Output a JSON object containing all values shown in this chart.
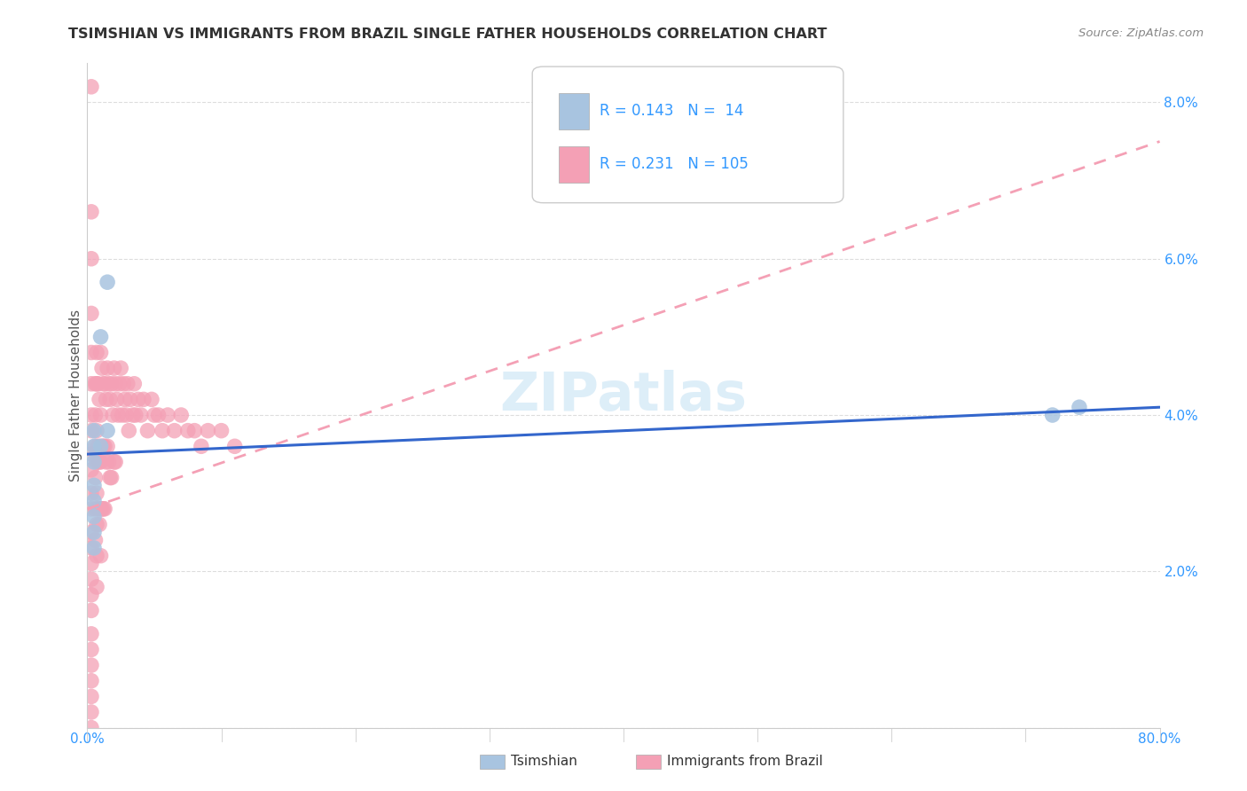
{
  "title": "TSIMSHIAN VS IMMIGRANTS FROM BRAZIL SINGLE FATHER HOUSEHOLDS CORRELATION CHART",
  "source": "Source: ZipAtlas.com",
  "ylabel": "Single Father Households",
  "x_min": 0.0,
  "x_max": 0.8,
  "y_min": 0.0,
  "y_max": 0.085,
  "x_ticks": [
    0.0,
    0.1,
    0.2,
    0.3,
    0.4,
    0.5,
    0.6,
    0.7,
    0.8
  ],
  "x_tick_labels": [
    "0.0%",
    "",
    "",
    "",
    "",
    "",
    "",
    "",
    "80.0%"
  ],
  "y_ticks": [
    0.0,
    0.02,
    0.04,
    0.06,
    0.08
  ],
  "y_tick_labels_right": [
    "",
    "2.0%",
    "4.0%",
    "6.0%",
    "8.0%"
  ],
  "tsimshian_color": "#a8c4e0",
  "brazil_color": "#f4a0b5",
  "tsimshian_line_color": "#3366cc",
  "brazil_line_color": "#f4a0b5",
  "tsimshian_R": 0.143,
  "tsimshian_N": 14,
  "brazil_R": 0.231,
  "brazil_N": 105,
  "legend_color": "#3399ff",
  "watermark": "ZIPatlas",
  "background_color": "#ffffff",
  "grid_color": "#dddddd",
  "tsimshian_line_start_y": 0.035,
  "tsimshian_line_end_y": 0.041,
  "brazil_line_start_y": 0.028,
  "brazil_line_end_y": 0.075,
  "tsimshian_points_x": [
    0.005,
    0.005,
    0.005,
    0.005,
    0.005,
    0.005,
    0.005,
    0.005,
    0.01,
    0.01,
    0.015,
    0.015,
    0.72,
    0.74
  ],
  "tsimshian_points_y": [
    0.038,
    0.036,
    0.034,
    0.031,
    0.029,
    0.027,
    0.025,
    0.023,
    0.05,
    0.036,
    0.038,
    0.057,
    0.04,
    0.041
  ],
  "brazil_points_x": [
    0.003,
    0.003,
    0.003,
    0.003,
    0.003,
    0.003,
    0.003,
    0.003,
    0.003,
    0.003,
    0.003,
    0.003,
    0.003,
    0.003,
    0.003,
    0.003,
    0.003,
    0.003,
    0.003,
    0.003,
    0.003,
    0.003,
    0.003,
    0.003,
    0.003,
    0.006,
    0.006,
    0.006,
    0.006,
    0.006,
    0.006,
    0.007,
    0.007,
    0.007,
    0.007,
    0.007,
    0.007,
    0.007,
    0.007,
    0.008,
    0.008,
    0.008,
    0.009,
    0.009,
    0.009,
    0.01,
    0.01,
    0.01,
    0.01,
    0.01,
    0.011,
    0.011,
    0.011,
    0.012,
    0.012,
    0.012,
    0.013,
    0.013,
    0.013,
    0.014,
    0.014,
    0.015,
    0.015,
    0.016,
    0.016,
    0.017,
    0.017,
    0.018,
    0.018,
    0.019,
    0.02,
    0.02,
    0.021,
    0.021,
    0.022,
    0.023,
    0.024,
    0.025,
    0.026,
    0.027,
    0.028,
    0.029,
    0.03,
    0.031,
    0.032,
    0.034,
    0.035,
    0.036,
    0.038,
    0.04,
    0.042,
    0.045,
    0.048,
    0.05,
    0.053,
    0.056,
    0.06,
    0.065,
    0.07,
    0.075,
    0.08,
    0.085,
    0.09,
    0.1,
    0.11
  ],
  "brazil_points_y": [
    0.082,
    0.066,
    0.06,
    0.053,
    0.048,
    0.044,
    0.04,
    0.038,
    0.035,
    0.033,
    0.03,
    0.028,
    0.025,
    0.023,
    0.021,
    0.019,
    0.017,
    0.015,
    0.012,
    0.01,
    0.008,
    0.006,
    0.004,
    0.002,
    0.0,
    0.044,
    0.04,
    0.036,
    0.032,
    0.028,
    0.024,
    0.048,
    0.044,
    0.038,
    0.034,
    0.03,
    0.026,
    0.022,
    0.018,
    0.044,
    0.036,
    0.028,
    0.042,
    0.034,
    0.026,
    0.048,
    0.04,
    0.034,
    0.028,
    0.022,
    0.046,
    0.036,
    0.028,
    0.044,
    0.036,
    0.028,
    0.044,
    0.036,
    0.028,
    0.042,
    0.034,
    0.046,
    0.036,
    0.044,
    0.034,
    0.042,
    0.032,
    0.044,
    0.032,
    0.04,
    0.046,
    0.034,
    0.044,
    0.034,
    0.042,
    0.04,
    0.044,
    0.046,
    0.04,
    0.044,
    0.042,
    0.04,
    0.044,
    0.038,
    0.042,
    0.04,
    0.044,
    0.04,
    0.042,
    0.04,
    0.042,
    0.038,
    0.042,
    0.04,
    0.04,
    0.038,
    0.04,
    0.038,
    0.04,
    0.038,
    0.038,
    0.036,
    0.038,
    0.038,
    0.036
  ]
}
